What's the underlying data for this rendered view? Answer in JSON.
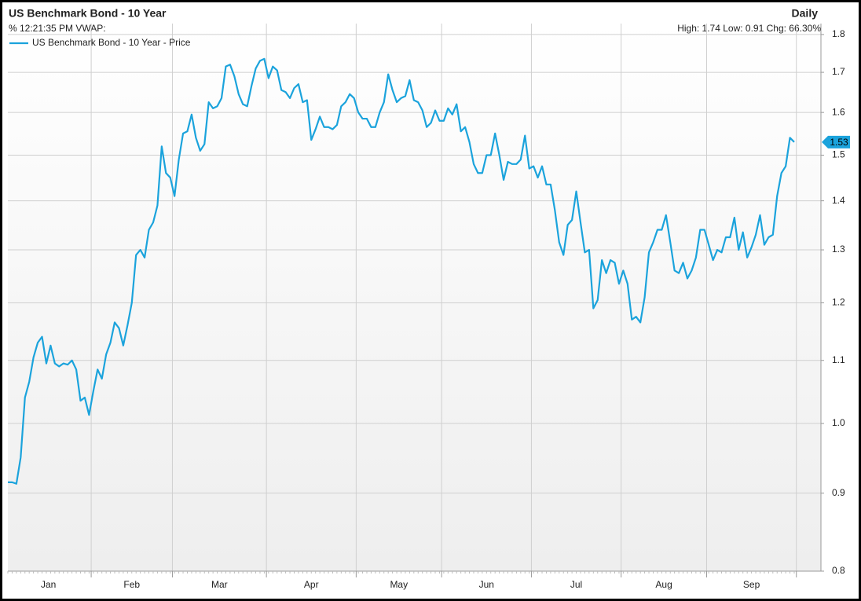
{
  "chart_data": {
    "type": "line",
    "title": "US Benchmark Bond - 10 Year",
    "period": "Daily",
    "subtitle": "% 12:21:35 PM VWAP:",
    "stats": "High: 1.74 Low: 0.91 Chg: 66.30%",
    "log_scale": true,
    "grid": true,
    "legend": "top-left",
    "ylim": [
      0.8,
      1.83
    ],
    "yticks": [
      0.8,
      0.9,
      {
        "value": 1,
        "label": "1.0"
      },
      1.1,
      1.2,
      1.3,
      1.4,
      1.5,
      1.6,
      1.7,
      1.8
    ],
    "categories": [
      "Jan",
      "Jan",
      "Jan",
      "Jan",
      "Jan",
      "Jan",
      "Jan",
      "Jan",
      "Jan",
      "Jan",
      "Jan",
      "Jan",
      "Jan",
      "Jan",
      "Jan",
      "Jan",
      "Jan",
      "Jan",
      "Jan",
      "Jan",
      "Feb",
      "Feb",
      "Feb",
      "Feb",
      "Feb",
      "Feb",
      "Feb",
      "Feb",
      "Feb",
      "Feb",
      "Feb",
      "Feb",
      "Feb",
      "Feb",
      "Feb",
      "Feb",
      "Feb",
      "Feb",
      "Feb",
      "Mar",
      "Mar",
      "Mar",
      "Mar",
      "Mar",
      "Mar",
      "Mar",
      "Mar",
      "Mar",
      "Mar",
      "Mar",
      "Mar",
      "Mar",
      "Mar",
      "Mar",
      "Mar",
      "Mar",
      "Mar",
      "Mar",
      "Mar",
      "Mar",
      "Mar",
      "Apr",
      "Apr",
      "Apr",
      "Apr",
      "Apr",
      "Apr",
      "Apr",
      "Apr",
      "Apr",
      "Apr",
      "Apr",
      "Apr",
      "Apr",
      "Apr",
      "Apr",
      "Apr",
      "Apr",
      "Apr",
      "Apr",
      "Apr",
      "Apr",
      "May",
      "May",
      "May",
      "May",
      "May",
      "May",
      "May",
      "May",
      "May",
      "May",
      "May",
      "May",
      "May",
      "May",
      "May",
      "May",
      "May",
      "May",
      "May",
      "May",
      "Jun",
      "Jun",
      "Jun",
      "Jun",
      "Jun",
      "Jun",
      "Jun",
      "Jun",
      "Jun",
      "Jun",
      "Jun",
      "Jun",
      "Jun",
      "Jun",
      "Jun",
      "Jun",
      "Jun",
      "Jun",
      "Jun",
      "Jun",
      "Jun",
      "Jul",
      "Jul",
      "Jul",
      "Jul",
      "Jul",
      "Jul",
      "Jul",
      "Jul",
      "Jul",
      "Jul",
      "Jul",
      "Jul",
      "Jul",
      "Jul",
      "Jul",
      "Jul",
      "Jul",
      "Jul",
      "Jul",
      "Jul",
      "Jul",
      "Aug",
      "Aug",
      "Aug",
      "Aug",
      "Aug",
      "Aug",
      "Aug",
      "Aug",
      "Aug",
      "Aug",
      "Aug",
      "Aug",
      "Aug",
      "Aug",
      "Aug",
      "Aug",
      "Aug",
      "Aug",
      "Aug",
      "Aug",
      "Sep",
      "Sep",
      "Sep",
      "Sep",
      "Sep",
      "Sep",
      "Sep",
      "Sep",
      "Sep",
      "Sep",
      "Sep",
      "Sep",
      "Sep",
      "Sep",
      "Sep",
      "Sep",
      "Sep",
      "Sep",
      "Sep",
      "Sep",
      "Sep"
    ],
    "series": [
      {
        "name": "US Benchmark Bond - 10 Year - Price",
        "color": "#1ba3dc",
        "values": [
          0.915,
          0.915,
          0.913,
          0.95,
          1.04,
          1.065,
          1.105,
          1.13,
          1.14,
          1.095,
          1.125,
          1.095,
          1.09,
          1.095,
          1.093,
          1.1,
          1.085,
          1.035,
          1.04,
          1.013,
          1.05,
          1.085,
          1.07,
          1.11,
          1.13,
          1.165,
          1.155,
          1.125,
          1.16,
          1.2,
          1.29,
          1.3,
          1.285,
          1.34,
          1.355,
          1.39,
          1.52,
          1.46,
          1.45,
          1.41,
          1.49,
          1.55,
          1.555,
          1.595,
          1.54,
          1.51,
          1.525,
          1.625,
          1.61,
          1.615,
          1.635,
          1.715,
          1.72,
          1.69,
          1.645,
          1.62,
          1.615,
          1.665,
          1.71,
          1.73,
          1.735,
          1.685,
          1.715,
          1.705,
          1.655,
          1.65,
          1.635,
          1.66,
          1.67,
          1.625,
          1.63,
          1.535,
          1.56,
          1.59,
          1.565,
          1.565,
          1.56,
          1.57,
          1.615,
          1.625,
          1.645,
          1.635,
          1.6,
          1.585,
          1.585,
          1.565,
          1.565,
          1.6,
          1.625,
          1.695,
          1.655,
          1.625,
          1.635,
          1.64,
          1.68,
          1.63,
          1.625,
          1.605,
          1.565,
          1.575,
          1.605,
          1.58,
          1.58,
          1.61,
          1.595,
          1.62,
          1.555,
          1.565,
          1.53,
          1.48,
          1.46,
          1.46,
          1.5,
          1.5,
          1.55,
          1.5,
          1.445,
          1.485,
          1.48,
          1.48,
          1.49,
          1.545,
          1.47,
          1.475,
          1.45,
          1.475,
          1.435,
          1.435,
          1.38,
          1.315,
          1.29,
          1.35,
          1.36,
          1.42,
          1.355,
          1.295,
          1.3,
          1.19,
          1.205,
          1.28,
          1.255,
          1.28,
          1.275,
          1.235,
          1.26,
          1.235,
          1.17,
          1.175,
          1.165,
          1.21,
          1.295,
          1.315,
          1.34,
          1.34,
          1.37,
          1.315,
          1.26,
          1.255,
          1.275,
          1.245,
          1.26,
          1.285,
          1.34,
          1.34,
          1.31,
          1.28,
          1.3,
          1.295,
          1.325,
          1.325,
          1.365,
          1.3,
          1.335,
          1.285,
          1.305,
          1.33,
          1.37,
          1.31,
          1.325,
          1.33,
          1.41,
          1.46,
          1.475,
          1.54,
          1.53
        ]
      }
    ]
  }
}
